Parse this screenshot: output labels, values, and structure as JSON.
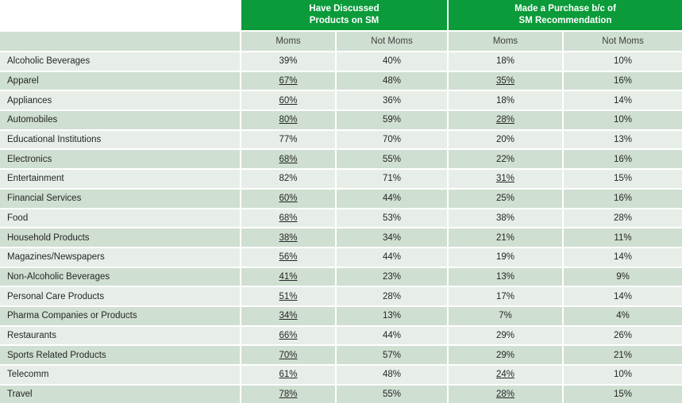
{
  "header": {
    "groups": [
      {
        "line1": "Have Discussed",
        "line2": "Products on SM"
      },
      {
        "line1": "Made a Purchase b/c of",
        "line2": "SM Recommendation"
      }
    ],
    "subheaders": [
      "Moms",
      "Not Moms",
      "Moms",
      "Not Moms"
    ]
  },
  "colors": {
    "header_green": "#0b9b3a",
    "row_light": "#e7eee8",
    "row_dark": "#cfdfd1"
  },
  "rows": [
    {
      "category": "Alcoholic Beverages",
      "values": [
        "39%",
        "40%",
        "18%",
        "10%"
      ],
      "underlined": [
        false,
        false,
        false,
        false
      ]
    },
    {
      "category": "Apparel",
      "values": [
        "67%",
        "48%",
        "35%",
        "16%"
      ],
      "underlined": [
        true,
        false,
        true,
        false
      ]
    },
    {
      "category": "Appliances",
      "values": [
        "60%",
        "36%",
        "18%",
        "14%"
      ],
      "underlined": [
        true,
        false,
        false,
        false
      ]
    },
    {
      "category": "Automobiles",
      "values": [
        "80%",
        "59%",
        "28%",
        "10%"
      ],
      "underlined": [
        true,
        false,
        true,
        false
      ]
    },
    {
      "category": "Educational Institutions",
      "values": [
        "77%",
        "70%",
        "20%",
        "13%"
      ],
      "underlined": [
        false,
        false,
        false,
        false
      ]
    },
    {
      "category": "Electronics",
      "values": [
        "68%",
        "55%",
        "22%",
        "16%"
      ],
      "underlined": [
        true,
        false,
        false,
        false
      ]
    },
    {
      "category": "Entertainment",
      "values": [
        "82%",
        "71%",
        "31%",
        "15%"
      ],
      "underlined": [
        false,
        false,
        true,
        false
      ]
    },
    {
      "category": "Financial Services",
      "values": [
        "60%",
        "44%",
        "25%",
        "16%"
      ],
      "underlined": [
        true,
        false,
        false,
        false
      ]
    },
    {
      "category": "Food",
      "values": [
        "68%",
        "53%",
        "38%",
        "28%"
      ],
      "underlined": [
        true,
        false,
        false,
        false
      ]
    },
    {
      "category": "Household Products",
      "values": [
        "38%",
        "34%",
        "21%",
        "11%"
      ],
      "underlined": [
        true,
        false,
        false,
        false
      ]
    },
    {
      "category": "Magazines/Newspapers",
      "values": [
        "56%",
        "44%",
        "19%",
        "14%"
      ],
      "underlined": [
        true,
        false,
        false,
        false
      ]
    },
    {
      "category": "Non-Alcoholic Beverages",
      "values": [
        "41%",
        "23%",
        "13%",
        "9%"
      ],
      "underlined": [
        true,
        false,
        false,
        false
      ]
    },
    {
      "category": "Personal Care Products",
      "values": [
        "51%",
        "28%",
        "17%",
        "14%"
      ],
      "underlined": [
        true,
        false,
        false,
        false
      ]
    },
    {
      "category": "Pharma Companies or Products",
      "values": [
        "34%",
        "13%",
        "7%",
        "4%"
      ],
      "underlined": [
        true,
        false,
        false,
        false
      ]
    },
    {
      "category": "Restaurants",
      "values": [
        "66%",
        "44%",
        "29%",
        "26%"
      ],
      "underlined": [
        true,
        false,
        false,
        false
      ]
    },
    {
      "category": "Sports Related Products",
      "values": [
        "70%",
        "57%",
        "29%",
        "21%"
      ],
      "underlined": [
        true,
        false,
        false,
        false
      ]
    },
    {
      "category": "Telecomm",
      "values": [
        "61%",
        "48%",
        "24%",
        "10%"
      ],
      "underlined": [
        true,
        false,
        true,
        false
      ]
    },
    {
      "category": "Travel",
      "values": [
        "78%",
        "55%",
        "28%",
        "15%"
      ],
      "underlined": [
        true,
        false,
        true,
        false
      ]
    }
  ]
}
